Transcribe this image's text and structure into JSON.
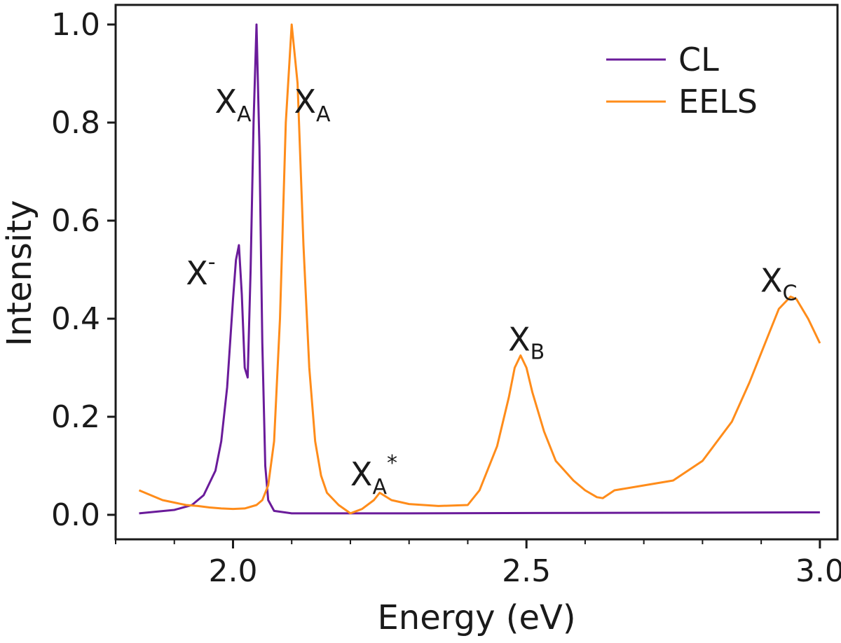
{
  "chart_data": {
    "type": "line",
    "title": "",
    "xlabel": "Energy (eV)",
    "ylabel": "Intensity",
    "xlim": [
      1.8,
      3.03
    ],
    "ylim": [
      -0.05,
      1.04
    ],
    "xticks": [
      2.0,
      2.5,
      3.0
    ],
    "xtick_labels": [
      "2.0",
      "2.5",
      "3.0"
    ],
    "yticks": [
      0.0,
      0.2,
      0.4,
      0.6,
      0.8,
      1.0
    ],
    "ytick_labels": [
      "0.0",
      "0.2",
      "0.4",
      "0.6",
      "0.8",
      "1.0"
    ],
    "grid": false,
    "legend_position": "top-right",
    "series": [
      {
        "name": "CL",
        "color": "#6a1b9a",
        "x": [
          1.84,
          1.9,
          1.93,
          1.95,
          1.97,
          1.98,
          1.99,
          2.0,
          2.005,
          2.01,
          2.015,
          2.02,
          2.025,
          2.03,
          2.035,
          2.04,
          2.045,
          2.05,
          2.055,
          2.06,
          2.07,
          2.1,
          2.3,
          2.6,
          3.0
        ],
        "y": [
          0.003,
          0.01,
          0.02,
          0.04,
          0.09,
          0.15,
          0.26,
          0.44,
          0.52,
          0.55,
          0.45,
          0.3,
          0.28,
          0.5,
          0.8,
          1.0,
          0.75,
          0.35,
          0.1,
          0.03,
          0.008,
          0.003,
          0.003,
          0.004,
          0.005
        ]
      },
      {
        "name": "EELS",
        "color": "#ff8c1a",
        "x": [
          1.84,
          1.86,
          1.88,
          1.9,
          1.92,
          1.94,
          1.96,
          1.98,
          2.0,
          2.02,
          2.04,
          2.05,
          2.06,
          2.07,
          2.08,
          2.09,
          2.1,
          2.11,
          2.12,
          2.13,
          2.14,
          2.15,
          2.16,
          2.18,
          2.2,
          2.22,
          2.24,
          2.25,
          2.27,
          2.3,
          2.35,
          2.4,
          2.42,
          2.45,
          2.47,
          2.48,
          2.49,
          2.5,
          2.51,
          2.53,
          2.55,
          2.58,
          2.6,
          2.62,
          2.63,
          2.65,
          2.7,
          2.75,
          2.8,
          2.85,
          2.88,
          2.91,
          2.93,
          2.95,
          2.96,
          2.98,
          3.0
        ],
        "y": [
          0.05,
          0.04,
          0.03,
          0.025,
          0.02,
          0.018,
          0.015,
          0.013,
          0.012,
          0.013,
          0.02,
          0.03,
          0.06,
          0.15,
          0.4,
          0.8,
          1.0,
          0.88,
          0.55,
          0.3,
          0.15,
          0.08,
          0.045,
          0.02,
          0.003,
          0.012,
          0.03,
          0.045,
          0.03,
          0.022,
          0.018,
          0.02,
          0.05,
          0.14,
          0.24,
          0.3,
          0.325,
          0.3,
          0.25,
          0.17,
          0.11,
          0.07,
          0.05,
          0.036,
          0.034,
          0.05,
          0.06,
          0.07,
          0.11,
          0.19,
          0.27,
          0.36,
          0.42,
          0.445,
          0.44,
          0.4,
          0.35
        ]
      }
    ],
    "annotations": [
      {
        "main": "X",
        "sub": "A",
        "sup": "",
        "x": 2.0,
        "y": 0.82
      },
      {
        "main": "X",
        "sub": "A",
        "sup": "",
        "x": 2.135,
        "y": 0.82
      },
      {
        "main": "X",
        "sub": "",
        "sup": "-",
        "x": 1.945,
        "y": 0.47
      },
      {
        "main": "X",
        "sub": "A",
        "sup": "*",
        "x": 2.24,
        "y": 0.06
      },
      {
        "main": "X",
        "sub": "B",
        "sup": "",
        "x": 2.5,
        "y": 0.335
      },
      {
        "main": "X",
        "sub": "C",
        "sup": "",
        "x": 2.93,
        "y": 0.455
      }
    ]
  }
}
